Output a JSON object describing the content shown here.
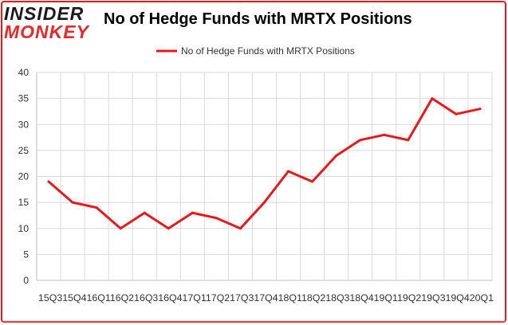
{
  "logo": {
    "line1": "INSIDER",
    "line2": "MONKEY"
  },
  "chart_data": {
    "type": "line",
    "title": "No of Hedge Funds with MRTX Positions",
    "xlabel": "",
    "ylabel": "",
    "categories": [
      "Q3 2015",
      "Q4 2015",
      "Q1 2016",
      "Q2 2016",
      "Q3 2016",
      "Q4 2016",
      "Q1 2017",
      "Q2 2017",
      "Q3 2017",
      "Q4 2017",
      "Q1 2018",
      "Q2 2018",
      "Q3 2018",
      "Q4 2018",
      "Q1 2019",
      "Q2 2019",
      "Q3 2019",
      "Q4 2019",
      "Q1 2020"
    ],
    "x_axis_text": "15Q315Q416Q116Q216Q316Q417Q117Q217Q317Q418Q118Q218Q318Q419Q119Q219Q319Q420Q1",
    "series": [
      {
        "name": "No of Hedge Funds with MRTX Positions",
        "color": "#e8191c",
        "values": [
          19,
          15,
          14,
          10,
          13,
          10,
          13,
          12,
          10,
          15,
          21,
          19,
          24,
          27,
          28,
          27,
          35,
          32,
          33
        ]
      }
    ],
    "ylim": [
      0,
      40
    ],
    "yticks": [
      0,
      5,
      10,
      15,
      20,
      25,
      30,
      35,
      40
    ],
    "grid": true,
    "legend_position": "top-center",
    "frame_color": "#e8191c"
  }
}
